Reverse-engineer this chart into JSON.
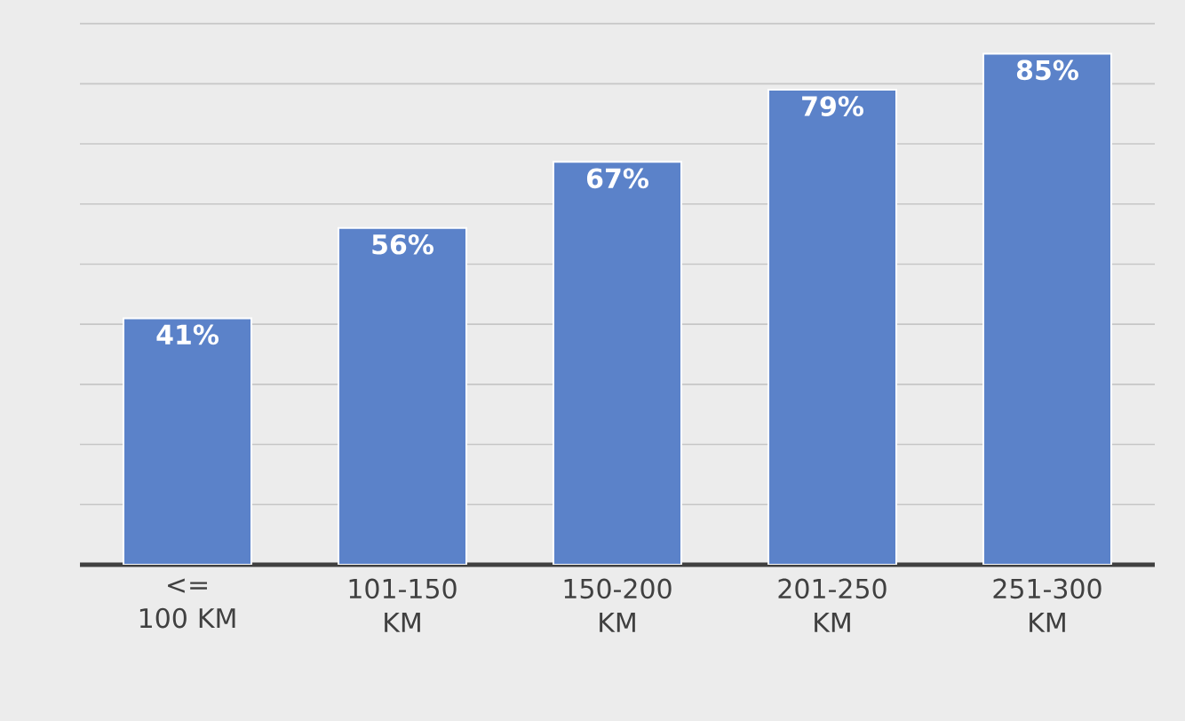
{
  "chart_data": {
    "type": "bar",
    "categories": [
      "<= 100 KM",
      "101-150 KM",
      "150-200 KM",
      "201-250 KM",
      "251-300 KM"
    ],
    "values": [
      41,
      56,
      67,
      79,
      85
    ],
    "value_labels": [
      "41%",
      "56%",
      "67%",
      "79%",
      "85%"
    ],
    "color": "#5b82c9",
    "grid": "y",
    "tick_labels": "x"
  }
}
